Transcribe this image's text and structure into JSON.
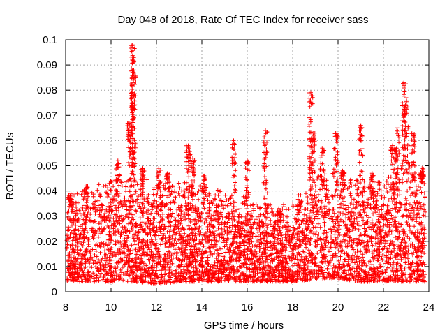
{
  "chart_data": {
    "type": "scatter",
    "title": "Day 048 of 2018, Rate Of TEC Index for receiver sass",
    "xlabel": "GPS time / hours",
    "ylabel": "ROTI / TECUs",
    "xlim": [
      8,
      24
    ],
    "ylim": [
      0,
      0.1
    ],
    "xticks": [
      8,
      10,
      12,
      14,
      16,
      18,
      20,
      22,
      24
    ],
    "xtick_labels": [
      "8",
      "10",
      "12",
      "14",
      "16",
      "18",
      "20",
      "22",
      "24"
    ],
    "yticks": [
      0,
      0.01,
      0.02,
      0.03,
      0.04,
      0.05,
      0.06,
      0.07,
      0.08,
      0.09,
      0.1
    ],
    "ytick_labels": [
      "0",
      "0.01",
      "0.02",
      "0.03",
      "0.04",
      "0.05",
      "0.06",
      "0.07",
      "0.08",
      "0.09",
      "0.1"
    ],
    "grid": true,
    "marker": "+",
    "marker_color": "#ff0000",
    "data_span_hours": [
      8.05,
      23.85
    ],
    "series": [
      {
        "name": "ROTI",
        "envelope_description": "dense band of points, typical range",
        "typical_range_by_hour": [
          {
            "x": 8.0,
            "low": 0.004,
            "high": 0.03
          },
          {
            "x": 9.0,
            "low": 0.004,
            "high": 0.034
          },
          {
            "x": 10.0,
            "low": 0.004,
            "high": 0.036
          },
          {
            "x": 11.0,
            "low": 0.004,
            "high": 0.038
          },
          {
            "x": 12.0,
            "low": 0.003,
            "high": 0.036
          },
          {
            "x": 13.0,
            "low": 0.004,
            "high": 0.036
          },
          {
            "x": 14.0,
            "low": 0.004,
            "high": 0.034
          },
          {
            "x": 15.0,
            "low": 0.004,
            "high": 0.032
          },
          {
            "x": 16.0,
            "low": 0.004,
            "high": 0.03
          },
          {
            "x": 17.0,
            "low": 0.004,
            "high": 0.027
          },
          {
            "x": 18.0,
            "low": 0.004,
            "high": 0.028
          },
          {
            "x": 19.0,
            "low": 0.005,
            "high": 0.038
          },
          {
            "x": 20.0,
            "low": 0.005,
            "high": 0.04
          },
          {
            "x": 21.0,
            "low": 0.004,
            "high": 0.036
          },
          {
            "x": 22.0,
            "low": 0.004,
            "high": 0.036
          },
          {
            "x": 23.0,
            "low": 0.004,
            "high": 0.044
          },
          {
            "x": 23.85,
            "low": 0.004,
            "high": 0.038
          }
        ],
        "peaks": [
          {
            "x": 8.2,
            "y": 0.038
          },
          {
            "x": 8.9,
            "y": 0.042
          },
          {
            "x": 10.3,
            "y": 0.052
          },
          {
            "x": 10.8,
            "y": 0.067
          },
          {
            "x": 10.95,
            "y": 0.098
          },
          {
            "x": 11.0,
            "y": 0.088
          },
          {
            "x": 10.95,
            "y": 0.079
          },
          {
            "x": 11.4,
            "y": 0.049
          },
          {
            "x": 12.1,
            "y": 0.049
          },
          {
            "x": 12.5,
            "y": 0.047
          },
          {
            "x": 13.4,
            "y": 0.058
          },
          {
            "x": 13.6,
            "y": 0.053
          },
          {
            "x": 14.1,
            "y": 0.046
          },
          {
            "x": 15.4,
            "y": 0.06
          },
          {
            "x": 16.0,
            "y": 0.052
          },
          {
            "x": 16.8,
            "y": 0.064
          },
          {
            "x": 17.4,
            "y": 0.032
          },
          {
            "x": 18.3,
            "y": 0.036
          },
          {
            "x": 18.8,
            "y": 0.079
          },
          {
            "x": 18.9,
            "y": 0.063
          },
          {
            "x": 19.3,
            "y": 0.057
          },
          {
            "x": 19.9,
            "y": 0.063
          },
          {
            "x": 20.2,
            "y": 0.048
          },
          {
            "x": 21.0,
            "y": 0.066
          },
          {
            "x": 21.5,
            "y": 0.047
          },
          {
            "x": 22.4,
            "y": 0.058
          },
          {
            "x": 22.6,
            "y": 0.065
          },
          {
            "x": 22.9,
            "y": 0.083
          },
          {
            "x": 23.0,
            "y": 0.077
          },
          {
            "x": 23.3,
            "y": 0.063
          },
          {
            "x": 23.7,
            "y": 0.049
          }
        ]
      }
    ]
  }
}
